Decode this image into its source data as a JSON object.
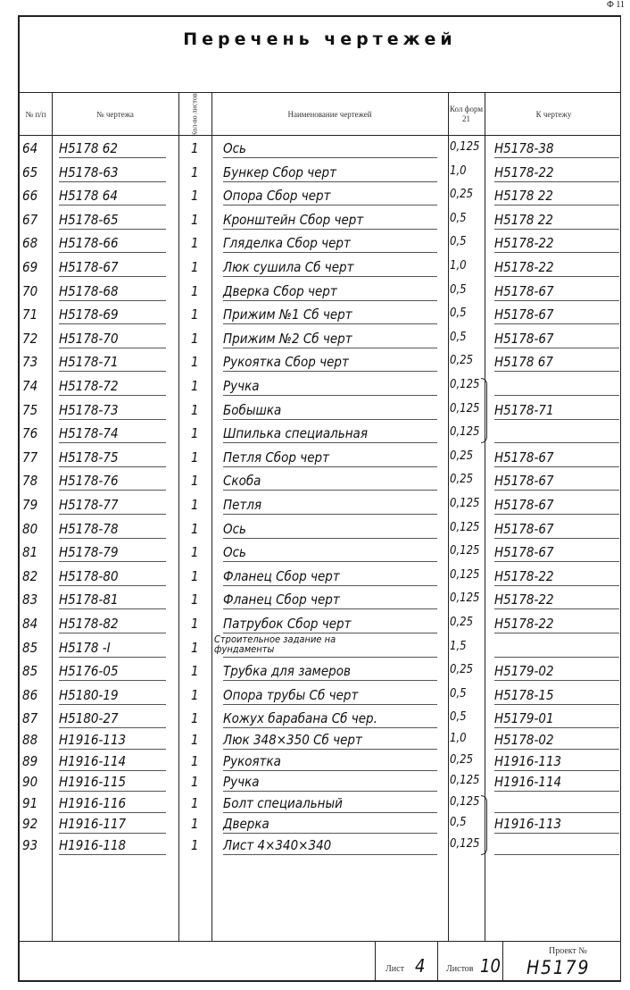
{
  "form_code": "Ф 11",
  "title": "Перечень чертежей",
  "headers": {
    "num": "№ п/п",
    "drawing_no": "№ чертежа",
    "sheets": "Кол-во листов",
    "name": "Наименование чертежей",
    "format": "Кол форм 21",
    "to_drawing": "К чертежу"
  },
  "rows": [
    {
      "num": "64",
      "drawing": "H5178 62",
      "sheets": "1",
      "name": "Ось",
      "format": "0,125",
      "ref": "H5178-38"
    },
    {
      "num": "65",
      "drawing": "H5178-63",
      "sheets": "1",
      "name": "Бункер Сбор черт",
      "format": "1,0",
      "ref": "H5178-22"
    },
    {
      "num": "66",
      "drawing": "H5178 64",
      "sheets": "1",
      "name": "Опора Сбор черт",
      "format": "0,25",
      "ref": "H5178 22"
    },
    {
      "num": "67",
      "drawing": "H5178-65",
      "sheets": "1",
      "name": "Кронштейн Сбор черт",
      "format": "0,5",
      "ref": "H5178 22"
    },
    {
      "num": "68",
      "drawing": "H5178-66",
      "sheets": "1",
      "name": "Гляделка Сбор черт",
      "format": "0,5",
      "ref": "H5178-22"
    },
    {
      "num": "69",
      "drawing": "H5178-67",
      "sheets": "1",
      "name": "Люк сушила Сб черт",
      "format": "1,0",
      "ref": "H5178-22"
    },
    {
      "num": "70",
      "drawing": "H5178-68",
      "sheets": "1",
      "name": "Дверка Сбор черт",
      "format": "0,5",
      "ref": "H5178-67"
    },
    {
      "num": "71",
      "drawing": "H5178-69",
      "sheets": "1",
      "name": "Прижим №1 Сб черт",
      "format": "0,5",
      "ref": "H5178-67"
    },
    {
      "num": "72",
      "drawing": "H5178-70",
      "sheets": "1",
      "name": "Прижим №2 Сб черт",
      "format": "0,5",
      "ref": "H5178-67"
    },
    {
      "num": "73",
      "drawing": "H5178-71",
      "sheets": "1",
      "name": "Рукоятка Сбор черт",
      "format": "0,25",
      "ref": "H5178 67"
    },
    {
      "num": "74",
      "drawing": "H5178-72",
      "sheets": "1",
      "name": "Ручка",
      "format": "0,125",
      "ref": ""
    },
    {
      "num": "75",
      "drawing": "H5178-73",
      "sheets": "1",
      "name": "Бобышка",
      "format": "0,125",
      "ref": "H5178-71"
    },
    {
      "num": "76",
      "drawing": "H5178-74",
      "sheets": "1",
      "name": "Шпилька специальная",
      "format": "0,125",
      "ref": ""
    },
    {
      "num": "77",
      "drawing": "H5178-75",
      "sheets": "1",
      "name": "Петля Сбор черт",
      "format": "0,25",
      "ref": "H5178-67"
    },
    {
      "num": "78",
      "drawing": "H5178-76",
      "sheets": "1",
      "name": "Скоба",
      "format": "0,25",
      "ref": "H5178-67"
    },
    {
      "num": "79",
      "drawing": "H5178-77",
      "sheets": "1",
      "name": "Петля",
      "format": "0,125",
      "ref": "H5178-67"
    },
    {
      "num": "80",
      "drawing": "H5178-78",
      "sheets": "1",
      "name": "Ось",
      "format": "0,125",
      "ref": "H5178-67"
    },
    {
      "num": "81",
      "drawing": "H5178-79",
      "sheets": "1",
      "name": "Ось",
      "format": "0,125",
      "ref": "H5178-67"
    },
    {
      "num": "82",
      "drawing": "H5178-80",
      "sheets": "1",
      "name": "Фланец Сбор черт",
      "format": "0,125",
      "ref": "H5178-22"
    },
    {
      "num": "83",
      "drawing": "H5178-81",
      "sheets": "1",
      "name": "Фланец Сбор черт",
      "format": "0,125",
      "ref": "H5178-22"
    },
    {
      "num": "84",
      "drawing": "H5178-82",
      "sheets": "1",
      "name": "Патрубок Сбор черт",
      "format": "0,25",
      "ref": "H5178-22"
    },
    {
      "num": "85",
      "drawing": "H5178 -I",
      "sheets": "1",
      "name": "Строительное задание на фундаменты",
      "format": "1,5",
      "ref": ""
    },
    {
      "num": "85",
      "drawing": "H5176-05",
      "sheets": "1",
      "name": "Трубка для замеров",
      "format": "0,25",
      "ref": "H5179-02"
    },
    {
      "num": "86",
      "drawing": "H5180-19",
      "sheets": "1",
      "name": "Опора трубы Сб черт",
      "format": "0,5",
      "ref": "H5178-15"
    },
    {
      "num": "87",
      "drawing": "H5180-27",
      "sheets": "1",
      "name": "Кожух барабана Сб чер.",
      "format": "0,5",
      "ref": "H5179-01"
    },
    {
      "num": "88",
      "drawing": "H1916-113",
      "sheets": "1",
      "name": "Люк 348×350 Сб черт",
      "format": "1,0",
      "ref": "H5178-02"
    },
    {
      "num": "89",
      "drawing": "H1916-114",
      "sheets": "1",
      "name": "Рукоятка",
      "format": "0,25",
      "ref": "H1916-113"
    },
    {
      "num": "90",
      "drawing": "H1916-115",
      "sheets": "1",
      "name": "Ручка",
      "format": "0,125",
      "ref": "H1916-114"
    },
    {
      "num": "91",
      "drawing": "H1916-116",
      "sheets": "1",
      "name": "Болт специальный",
      "format": "0,125",
      "ref": ""
    },
    {
      "num": "92",
      "drawing": "H1916-117",
      "sheets": "1",
      "name": "Дверка",
      "format": "0,5",
      "ref": "H1916-113"
    },
    {
      "num": "93",
      "drawing": "H1916-118",
      "sheets": "1",
      "name": "Лист 4×340×340",
      "format": "0,125",
      "ref": ""
    }
  ],
  "footer": {
    "sheet_label": "Лист",
    "sheet_value": "4",
    "sheets_label": "Листов",
    "sheets_value": "10",
    "project_label": "Проект №",
    "project_value": "H5179"
  }
}
